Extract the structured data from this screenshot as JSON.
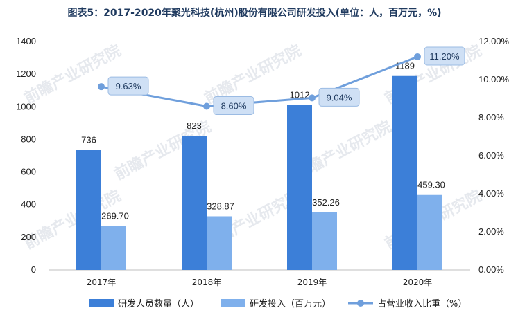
{
  "chart_data": {
    "type": "bar",
    "title": "图表5：2017-2020年聚光科技(杭州)股份有限公司研发投入(单位：人，百万元，%)",
    "categories": [
      "2017年",
      "2018年",
      "2019年",
      "2020年"
    ],
    "series": [
      {
        "name": "研发人员数量（人）",
        "type": "bar",
        "axis": "left",
        "color": "#3c7fd8",
        "values": [
          736,
          823,
          1012,
          1189
        ],
        "labels": [
          "736",
          "823",
          "1012",
          "1189"
        ]
      },
      {
        "name": "研发投入（百万元）",
        "type": "bar",
        "axis": "left",
        "color": "#7fb0ec",
        "values": [
          269.7,
          328.87,
          352.26,
          459.3
        ],
        "labels": [
          "269.70",
          "328.87",
          "352.26",
          "459.30"
        ]
      },
      {
        "name": "占营业收入比重（%）",
        "type": "line",
        "axis": "right",
        "color": "#6f9fdc",
        "values": [
          9.63,
          8.6,
          9.04,
          11.2
        ],
        "labels": [
          "9.63%",
          "8.60%",
          "9.04%",
          "11.20%"
        ]
      }
    ],
    "left_axis": {
      "min": 0,
      "max": 1400,
      "ticks": [
        "0",
        "200",
        "400",
        "600",
        "800",
        "1000",
        "1200",
        "1400"
      ]
    },
    "right_axis": {
      "min": 0,
      "max": 12,
      "ticks": [
        "0.00%",
        "2.00%",
        "4.00%",
        "6.00%",
        "8.00%",
        "10.00%",
        "12.00%"
      ]
    },
    "grid": false,
    "legend_position": "bottom"
  },
  "watermark": "前瞻产业研究院"
}
